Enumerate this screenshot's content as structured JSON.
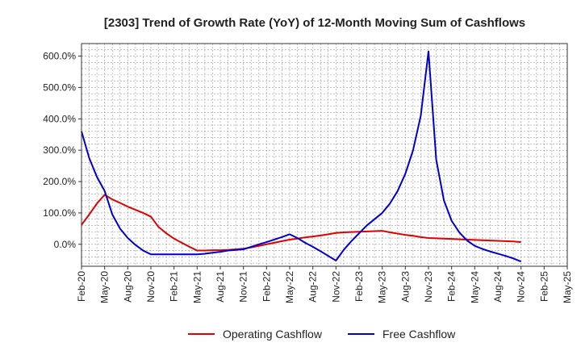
{
  "chart_data": {
    "type": "line",
    "title": "[2303]  Trend of Growth Rate (YoY) of 12-Month Moving Sum of Cashflows",
    "xlabel": "",
    "ylabel": "",
    "ylim": [
      -70,
      640
    ],
    "yticks": [
      0,
      100,
      200,
      300,
      400,
      500,
      600
    ],
    "ytick_labels": [
      "0.0%",
      "100.0%",
      "200.0%",
      "300.0%",
      "400.0%",
      "500.0%",
      "600.0%"
    ],
    "x_range": [
      "2020-02",
      "2025-05"
    ],
    "x_tick_labels": [
      "Feb-20",
      "May-20",
      "Aug-20",
      "Nov-20",
      "Feb-21",
      "May-21",
      "Aug-21",
      "Nov-21",
      "Feb-22",
      "May-22",
      "Aug-22",
      "Nov-22",
      "Feb-23",
      "May-23",
      "Aug-23",
      "Nov-23",
      "Feb-24",
      "May-24",
      "Aug-24",
      "Nov-24",
      "Feb-25",
      "May-25"
    ],
    "grid": true,
    "legend_position": "bottom-center",
    "series": [
      {
        "name": "Operating Cashflow",
        "color": "#e00000",
        "points": [
          [
            "2020-02",
            62
          ],
          [
            "2020-03",
            95
          ],
          [
            "2020-04",
            130
          ],
          [
            "2020-05",
            158
          ],
          [
            "2020-06",
            143
          ],
          [
            "2020-07",
            132
          ],
          [
            "2020-08",
            120
          ],
          [
            "2020-09",
            110
          ],
          [
            "2020-10",
            100
          ],
          [
            "2020-11",
            88
          ],
          [
            "2020-12",
            55
          ],
          [
            "2021-01",
            35
          ],
          [
            "2021-02",
            18
          ],
          [
            "2021-03",
            5
          ],
          [
            "2021-04",
            -8
          ],
          [
            "2021-05",
            -20
          ],
          [
            "2021-06",
            -20
          ],
          [
            "2021-07",
            -19
          ],
          [
            "2021-08",
            -19
          ],
          [
            "2021-09",
            -18
          ],
          [
            "2021-10",
            -16
          ],
          [
            "2021-11",
            -14
          ],
          [
            "2021-12",
            -10
          ],
          [
            "2022-01",
            -5
          ],
          [
            "2022-02",
            0
          ],
          [
            "2022-03",
            5
          ],
          [
            "2022-04",
            10
          ],
          [
            "2022-05",
            15
          ],
          [
            "2022-06",
            18
          ],
          [
            "2022-07",
            22
          ],
          [
            "2022-08",
            25
          ],
          [
            "2022-09",
            28
          ],
          [
            "2022-10",
            32
          ],
          [
            "2022-11",
            36
          ],
          [
            "2022-12",
            38
          ],
          [
            "2023-01",
            39
          ],
          [
            "2023-02",
            40
          ],
          [
            "2023-03",
            41
          ],
          [
            "2023-04",
            42
          ],
          [
            "2023-05",
            43
          ],
          [
            "2023-06",
            38
          ],
          [
            "2023-07",
            34
          ],
          [
            "2023-08",
            30
          ],
          [
            "2023-09",
            27
          ],
          [
            "2023-10",
            23
          ],
          [
            "2023-11",
            20
          ],
          [
            "2023-12",
            19
          ],
          [
            "2024-01",
            18
          ],
          [
            "2024-02",
            17
          ],
          [
            "2024-03",
            16
          ],
          [
            "2024-04",
            15
          ],
          [
            "2024-05",
            14
          ],
          [
            "2024-06",
            13
          ],
          [
            "2024-07",
            12
          ],
          [
            "2024-08",
            11
          ],
          [
            "2024-09",
            10
          ],
          [
            "2024-10",
            9
          ],
          [
            "2024-11",
            7
          ]
        ]
      },
      {
        "name": "Free Cashflow",
        "color": "#0000cc",
        "points": [
          [
            "2020-02",
            360
          ],
          [
            "2020-03",
            275
          ],
          [
            "2020-04",
            215
          ],
          [
            "2020-05",
            170
          ],
          [
            "2020-06",
            95
          ],
          [
            "2020-07",
            50
          ],
          [
            "2020-08",
            20
          ],
          [
            "2020-09",
            -2
          ],
          [
            "2020-10",
            -20
          ],
          [
            "2020-11",
            -32
          ],
          [
            "2020-12",
            -32
          ],
          [
            "2021-01",
            -32
          ],
          [
            "2021-02",
            -32
          ],
          [
            "2021-03",
            -32
          ],
          [
            "2021-04",
            -32
          ],
          [
            "2021-05",
            -32
          ],
          [
            "2021-06",
            -30
          ],
          [
            "2021-07",
            -27
          ],
          [
            "2021-08",
            -24
          ],
          [
            "2021-09",
            -20
          ],
          [
            "2021-10",
            -18
          ],
          [
            "2021-11",
            -16
          ],
          [
            "2021-12",
            -8
          ],
          [
            "2022-01",
            0
          ],
          [
            "2022-02",
            7
          ],
          [
            "2022-03",
            15
          ],
          [
            "2022-04",
            23
          ],
          [
            "2022-05",
            32
          ],
          [
            "2022-06",
            20
          ],
          [
            "2022-07",
            5
          ],
          [
            "2022-08",
            -8
          ],
          [
            "2022-09",
            -22
          ],
          [
            "2022-10",
            -37
          ],
          [
            "2022-11",
            -52
          ],
          [
            "2022-12",
            -18
          ],
          [
            "2023-01",
            10
          ],
          [
            "2023-02",
            35
          ],
          [
            "2023-03",
            60
          ],
          [
            "2023-04",
            80
          ],
          [
            "2023-05",
            100
          ],
          [
            "2023-06",
            130
          ],
          [
            "2023-07",
            170
          ],
          [
            "2023-08",
            225
          ],
          [
            "2023-09",
            300
          ],
          [
            "2023-10",
            410
          ],
          [
            "2023-11",
            615
          ],
          [
            "2023-12",
            270
          ],
          [
            "2024-01",
            140
          ],
          [
            "2024-02",
            75
          ],
          [
            "2024-03",
            38
          ],
          [
            "2024-04",
            12
          ],
          [
            "2024-05",
            -5
          ],
          [
            "2024-06",
            -15
          ],
          [
            "2024-07",
            -23
          ],
          [
            "2024-08",
            -30
          ],
          [
            "2024-09",
            -37
          ],
          [
            "2024-10",
            -45
          ],
          [
            "2024-11",
            -55
          ]
        ]
      }
    ]
  }
}
